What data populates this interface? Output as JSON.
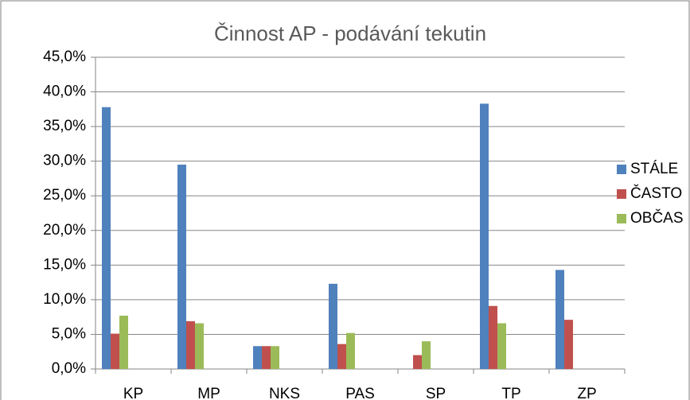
{
  "chart_data": {
    "type": "bar",
    "title": "Činnost AP - podávání tekutin",
    "categories": [
      "KP",
      "MP",
      "NKS",
      "PAS",
      "SP",
      "TP",
      "ZP"
    ],
    "series": [
      {
        "name": "STÁLE",
        "color": "#4f81bd",
        "values": [
          37.8,
          29.5,
          3.3,
          12.3,
          0,
          38.3,
          14.3
        ]
      },
      {
        "name": "ČASTO",
        "color": "#c0504d",
        "values": [
          5.1,
          6.9,
          3.3,
          3.6,
          2.0,
          9.1,
          7.1
        ]
      },
      {
        "name": "OBČAS",
        "color": "#9bbb59",
        "values": [
          7.7,
          6.6,
          3.3,
          5.2,
          4.0,
          6.6,
          0
        ]
      }
    ],
    "ylim": [
      0,
      45
    ],
    "yticks": [
      {
        "value": 0,
        "label": "0,0%"
      },
      {
        "value": 5,
        "label": "5,0%"
      },
      {
        "value": 10,
        "label": "10,0%"
      },
      {
        "value": 15,
        "label": "15,0%"
      },
      {
        "value": 20,
        "label": "20,0%"
      },
      {
        "value": 25,
        "label": "25,0%"
      },
      {
        "value": 30,
        "label": "30,0%"
      },
      {
        "value": 35,
        "label": "35,0%"
      },
      {
        "value": 40,
        "label": "40,0%"
      },
      {
        "value": 45,
        "label": "45,0%"
      }
    ],
    "grid": true,
    "legend": "right"
  }
}
